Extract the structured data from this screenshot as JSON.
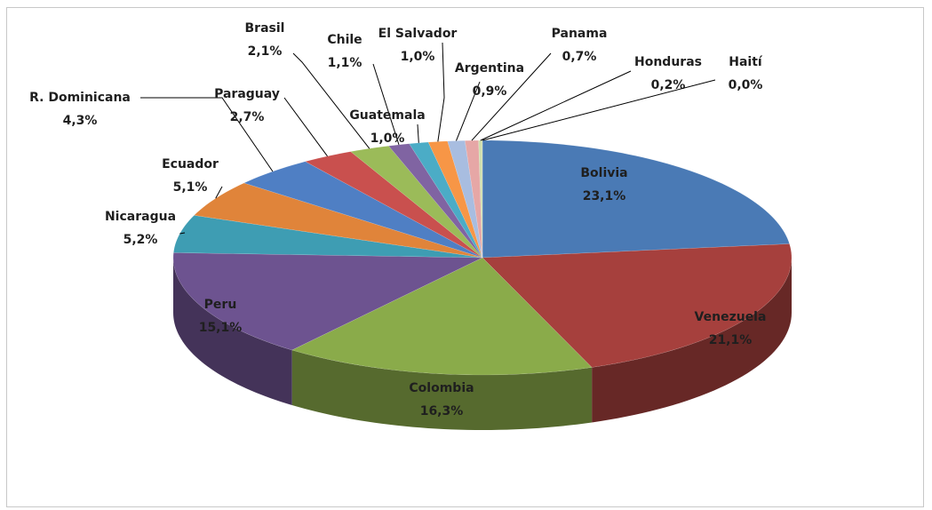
{
  "chart_data": {
    "type": "pie",
    "categories": [
      "Bolivia",
      "Venezuela",
      "Colombia",
      "Peru",
      "Nicaragua",
      "Ecuador",
      "R. Dominicana",
      "Paraguay",
      "Brasil",
      "Chile",
      "Guatemala",
      "El Salvador",
      "Argentina",
      "Panama",
      "Honduras",
      "Haití"
    ],
    "values": [
      23.1,
      21.1,
      16.3,
      15.1,
      5.2,
      5.1,
      4.3,
      2.7,
      2.1,
      1.1,
      1.0,
      1.0,
      0.9,
      0.7,
      0.2,
      0.0
    ],
    "value_labels": [
      "23,1%",
      "21,1%",
      "16,3%",
      "15,1%",
      "5,2%",
      "5,1%",
      "4,3%",
      "2,7%",
      "2,1%",
      "1,1%",
      "1,0%",
      "1,0%",
      "0,9%",
      "0,7%",
      "0,2%",
      "0,0%"
    ],
    "colors": [
      "#4a7ab5",
      "#a6403d",
      "#8aab4a",
      "#6d5390",
      "#3e9db3",
      "#e0843a",
      "#4f7fc4",
      "#c9504e",
      "#9bbb59",
      "#8064a2",
      "#4bacc6",
      "#f79646",
      "#a8bde0",
      "#e6a7a6",
      "#d0dfae",
      "#bdaed3"
    ]
  }
}
